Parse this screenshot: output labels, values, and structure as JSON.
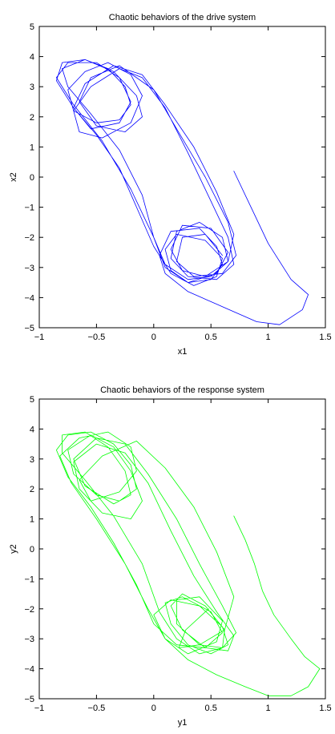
{
  "chart_data": [
    {
      "type": "line",
      "title": "Chaotic behaviors of the drive system",
      "xlabel": "x1",
      "ylabel": "x2",
      "xlim": [
        -1,
        1.5
      ],
      "ylim": [
        -5,
        5
      ],
      "xticks": [
        -1,
        -0.5,
        0,
        0.5,
        1,
        1.5
      ],
      "xtick_labels": [
        "−1",
        "−0.5",
        "0",
        "0.5",
        "1",
        "1.5"
      ],
      "yticks": [
        -5,
        -4,
        -3,
        -2,
        -1,
        0,
        1,
        2,
        3,
        4,
        5
      ],
      "ytick_labels": [
        "−5",
        "−4",
        "−3",
        "−2",
        "−1",
        "0",
        "1",
        "2",
        "3",
        "4",
        "5"
      ],
      "grid": false,
      "color": "#0000ff",
      "series": [
        {
          "x": [
            0.7,
            0.85,
            1.0,
            1.2,
            1.35,
            1.3,
            1.1,
            0.9,
            0.6,
            0.3,
            0.1,
            0.05,
            0.15,
            0.4,
            0.55,
            0.6,
            0.5,
            0.3,
            0.15,
            0.1,
            0.2,
            0.45,
            0.6,
            0.55,
            0.35,
            0.15,
            0.0,
            -0.15,
            -0.3,
            -0.5,
            -0.7,
            -0.85,
            -0.8,
            -0.6,
            -0.4,
            -0.25,
            -0.2,
            -0.3,
            -0.5,
            -0.7,
            -0.75,
            -0.6,
            -0.4,
            -0.2,
            -0.1,
            -0.2,
            -0.45,
            -0.65,
            -0.7,
            -0.55,
            -0.3,
            -0.1,
            0.1,
            0.3,
            0.5,
            0.65,
            0.7,
            0.55,
            0.3,
            0.15,
            0.2,
            0.4,
            0.6,
            0.65,
            0.5,
            0.3,
            0.1,
            0.0,
            -0.2,
            -0.45,
            -0.7,
            -0.85,
            -0.75,
            -0.5,
            -0.3,
            -0.2,
            -0.3,
            -0.55,
            -0.7,
            -0.6,
            -0.35,
            -0.1,
            0.1,
            0.35,
            0.55,
            0.7,
            0.65,
            0.45,
            0.25,
            0.15,
            0.25,
            0.5,
            0.65,
            0.55,
            0.3,
            0.1,
            0.0,
            -0.1,
            -0.3,
            -0.55,
            -0.75,
            -0.8,
            -0.6,
            -0.35,
            -0.15,
            -0.1,
            -0.25,
            -0.5,
            -0.65,
            -0.55,
            -0.3,
            0.0,
            0.2,
            0.45,
            0.65,
            0.72,
            0.6,
            0.35,
            0.2,
            0.25,
            0.45,
            0.6
          ],
          "y": [
            0.2,
            -1.0,
            -2.2,
            -3.4,
            -3.9,
            -4.4,
            -4.9,
            -4.8,
            -4.3,
            -3.8,
            -3.2,
            -2.6,
            -1.8,
            -1.7,
            -2.3,
            -2.9,
            -3.4,
            -3.5,
            -3.1,
            -2.4,
            -1.9,
            -2.1,
            -2.7,
            -3.3,
            -3.6,
            -3.2,
            -2.3,
            -1.0,
            0.3,
            1.4,
            2.3,
            3.2,
            3.8,
            3.9,
            3.6,
            3.0,
            2.4,
            1.9,
            1.8,
            2.2,
            2.9,
            3.5,
            3.8,
            3.4,
            2.7,
            1.8,
            1.3,
            1.5,
            2.2,
            3.0,
            3.6,
            3.3,
            2.3,
            0.8,
            -0.8,
            -2.0,
            -2.9,
            -3.4,
            -3.3,
            -2.7,
            -1.8,
            -1.5,
            -2.0,
            -2.8,
            -3.3,
            -3.4,
            -2.9,
            -2.0,
            -0.4,
            1.2,
            2.4,
            3.3,
            3.8,
            3.8,
            3.3,
            2.5,
            1.8,
            1.6,
            2.3,
            3.1,
            3.7,
            3.4,
            2.4,
            1.0,
            -0.5,
            -1.9,
            -2.8,
            -3.3,
            -3.1,
            -2.4,
            -1.6,
            -1.7,
            -2.5,
            -3.2,
            -3.5,
            -3.0,
            -2.0,
            -0.6,
            0.9,
            2.1,
            3.0,
            3.6,
            3.9,
            3.5,
            2.7,
            2.0,
            1.5,
            1.7,
            2.5,
            3.3,
            3.7,
            2.9,
            1.6,
            0.0,
            -1.5,
            -2.6,
            -3.2,
            -3.3,
            -2.8,
            -2.0,
            -1.9,
            -2.6
          ]
        }
      ]
    },
    {
      "type": "line",
      "title": "Chaotic behaviors of the response system",
      "xlabel": "y1",
      "ylabel": "y2",
      "xlim": [
        -1,
        1.5
      ],
      "ylim": [
        -5,
        5
      ],
      "xticks": [
        -1,
        -0.5,
        0,
        0.5,
        1,
        1.5
      ],
      "xtick_labels": [
        "−1",
        "−0.5",
        "0",
        "0.5",
        "1",
        "1.5"
      ],
      "yticks": [
        -5,
        -4,
        -3,
        -2,
        -1,
        0,
        1,
        2,
        3,
        4,
        5
      ],
      "ytick_labels": [
        "−5",
        "−4",
        "−3",
        "−2",
        "−1",
        "0",
        "1",
        "2",
        "3",
        "4",
        "5"
      ],
      "grid": false,
      "color": "#00ff00",
      "series": [
        {
          "x": [
            0.7,
            0.8,
            0.88,
            0.95,
            1.05,
            1.2,
            1.32,
            1.45,
            1.35,
            1.2,
            1.0,
            0.8,
            0.55,
            0.3,
            0.1,
            0.0,
            0.15,
            0.4,
            0.6,
            0.65,
            0.5,
            0.3,
            0.15,
            0.1,
            0.25,
            0.5,
            0.6,
            0.45,
            0.2,
            0.0,
            -0.15,
            -0.35,
            -0.55,
            -0.75,
            -0.85,
            -0.75,
            -0.55,
            -0.35,
            -0.2,
            -0.15,
            -0.3,
            -0.5,
            -0.7,
            -0.75,
            -0.55,
            -0.35,
            -0.2,
            -0.1,
            -0.2,
            -0.45,
            -0.65,
            -0.7,
            -0.5,
            -0.25,
            -0.05,
            0.15,
            0.35,
            0.55,
            0.7,
            0.65,
            0.45,
            0.25,
            0.15,
            0.25,
            0.45,
            0.62,
            0.6,
            0.4,
            0.2,
            0.05,
            -0.1,
            -0.35,
            -0.6,
            -0.8,
            -0.8,
            -0.6,
            -0.4,
            -0.25,
            -0.2,
            -0.35,
            -0.6,
            -0.7,
            -0.5,
            -0.25,
            -0.05,
            0.2,
            0.4,
            0.6,
            0.72,
            0.6,
            0.4,
            0.2,
            0.2,
            0.4,
            0.6,
            0.55,
            0.3,
            0.1,
            -0.05,
            -0.25,
            -0.5,
            -0.72,
            -0.82,
            -0.65,
            -0.4,
            -0.2,
            -0.15,
            -0.3,
            -0.55,
            -0.65,
            -0.45,
            -0.15,
            0.1,
            0.35,
            0.55,
            0.7,
            0.62,
            0.4,
            0.22,
            0.28,
            0.48
          ],
          "y": [
            1.1,
            0.3,
            -0.5,
            -1.4,
            -2.2,
            -3.0,
            -3.6,
            -4.0,
            -4.6,
            -4.9,
            -4.9,
            -4.6,
            -4.2,
            -3.7,
            -3.0,
            -2.2,
            -1.7,
            -1.9,
            -2.6,
            -3.2,
            -3.5,
            -3.2,
            -2.5,
            -1.8,
            -1.6,
            -2.1,
            -2.8,
            -3.3,
            -3.2,
            -2.5,
            -1.2,
            0.2,
            1.4,
            2.4,
            3.3,
            3.8,
            3.9,
            3.5,
            2.8,
            2.0,
            1.6,
            1.8,
            2.5,
            3.3,
            3.8,
            3.4,
            2.6,
            1.6,
            1.0,
            1.2,
            2.0,
            2.9,
            3.5,
            3.2,
            2.2,
            0.6,
            -0.9,
            -2.1,
            -2.9,
            -3.4,
            -3.3,
            -2.7,
            -1.9,
            -1.5,
            -1.9,
            -2.7,
            -3.3,
            -3.5,
            -3.0,
            -2.1,
            -0.5,
            1.1,
            2.3,
            3.2,
            3.8,
            3.9,
            3.4,
            2.6,
            1.8,
            1.5,
            2.1,
            3.0,
            3.7,
            3.5,
            2.5,
            1.0,
            -0.5,
            -1.9,
            -2.8,
            -3.3,
            -3.2,
            -2.5,
            -1.7,
            -1.6,
            -2.4,
            -3.1,
            -3.5,
            -3.0,
            -2.0,
            -0.5,
            1.0,
            2.2,
            3.1,
            3.7,
            3.9,
            3.4,
            2.6,
            1.9,
            1.6,
            2.3,
            3.1,
            3.6,
            2.7,
            1.4,
            -0.1,
            -1.6,
            -2.7,
            -3.2,
            -3.3,
            -2.7,
            -2.0
          ]
        }
      ]
    }
  ]
}
